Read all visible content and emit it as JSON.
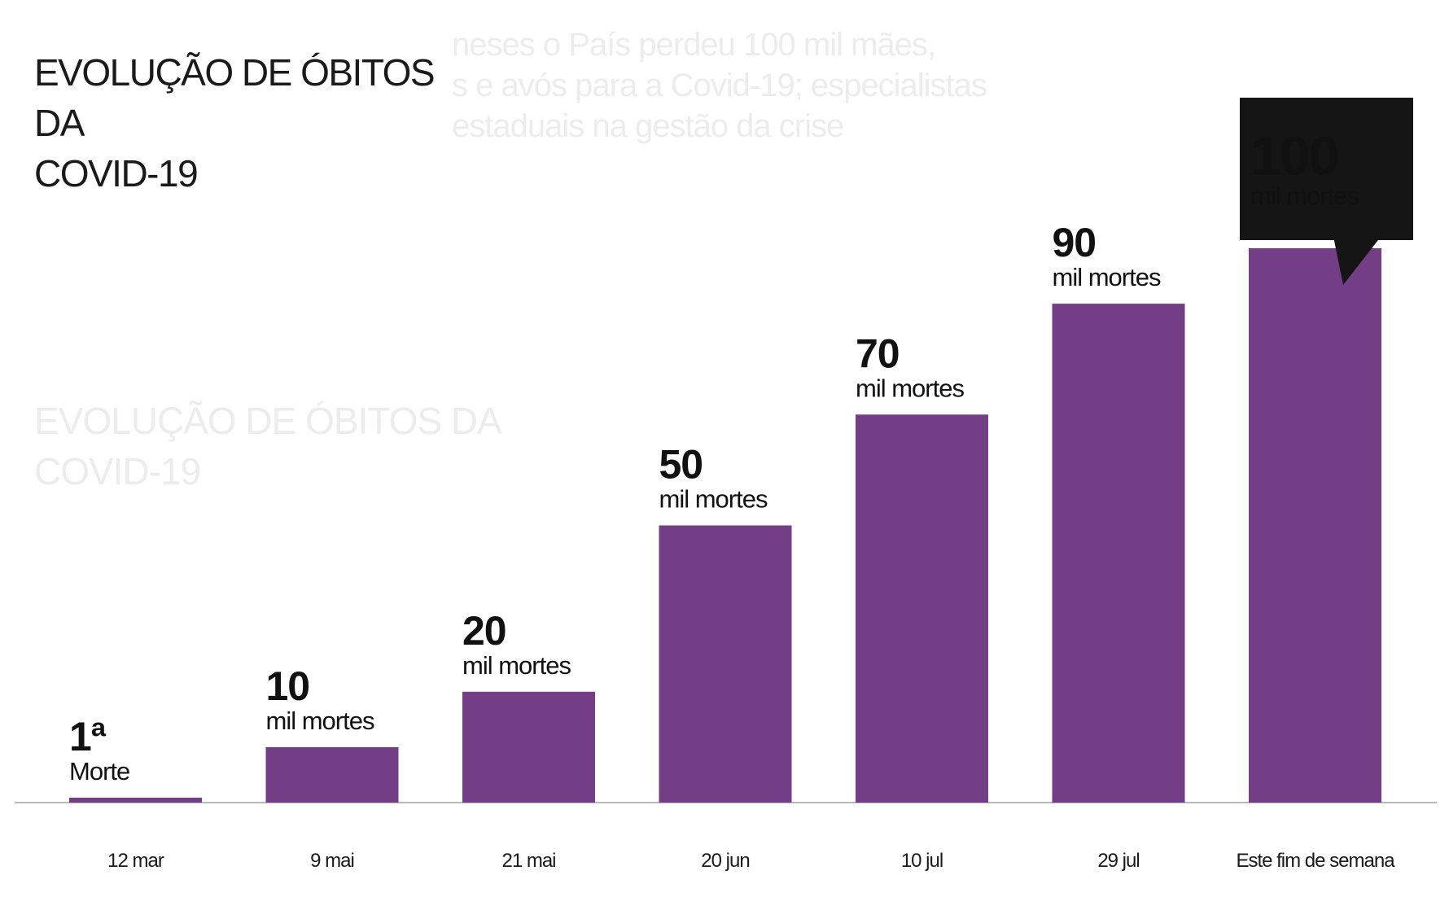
{
  "background_text": {
    "lines": [
      "neses o País perdeu 100 mil mães,",
      "s e avós para a Covid-19; especialistas",
      "estaduais na gestão da crise"
    ],
    "title_echo": [
      "EVOLUÇÃO DE ÓBITOS DA",
      "COVID-19"
    ]
  },
  "chart_data": {
    "type": "bar",
    "title": "EVOLUÇÃO DE ÓBITOS DA COVID-19",
    "title_lines": [
      "EVOLUÇÃO DE ÓBITOS DA",
      "COVID-19"
    ],
    "categories": [
      "12 mar",
      "9 mai",
      "21 mai",
      "20 jun",
      "10 jul",
      "29 jul",
      "Este fim de semana"
    ],
    "values": [
      0.001,
      10,
      20,
      50,
      70,
      90,
      100
    ],
    "value_labels": [
      {
        "main": "1ª",
        "sub": "Morte"
      },
      {
        "main": "10",
        "sub": "mil mortes"
      },
      {
        "main": "20",
        "sub": "mil mortes"
      },
      {
        "main": "50",
        "sub": "mil mortes"
      },
      {
        "main": "70",
        "sub": "mil mortes"
      },
      {
        "main": "90",
        "sub": "mil mortes"
      },
      {
        "main": "100",
        "sub": "mil mortes"
      }
    ],
    "highlight_index": 6,
    "ylim": [
      0,
      100
    ],
    "xlabel": "",
    "ylabel": "",
    "grid": false,
    "colors": {
      "bar": "#733e86",
      "baseline": "#b8b8b8",
      "callout_bg": "#151515",
      "callout_text": "#ffffff",
      "label_text": "#111111"
    }
  }
}
